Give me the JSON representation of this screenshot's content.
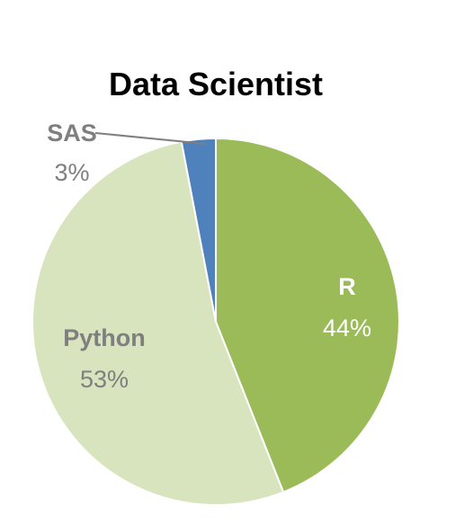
{
  "chart_data": {
    "type": "pie",
    "title": "Data Scientist",
    "slices": [
      {
        "label": "R",
        "value": 44,
        "value_label": "44%",
        "color": "#9bbb59",
        "label_color": "#ffffff"
      },
      {
        "label": "Python",
        "value": 53,
        "value_label": "53%",
        "color": "#d7e4bd",
        "label_color": "#7f7f7f"
      },
      {
        "label": "SAS",
        "value": 3,
        "value_label": "3%",
        "color": "#4f81bd",
        "label_color": "#7f7f7f"
      }
    ],
    "start_angle_deg": 0,
    "direction": "clockwise",
    "legend": "none"
  }
}
